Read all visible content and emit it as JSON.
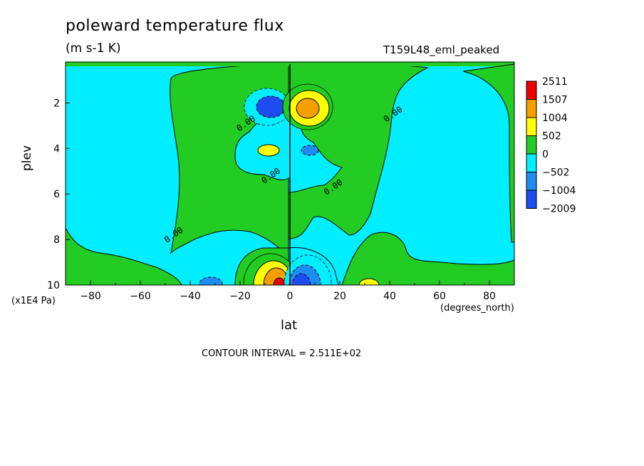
{
  "title": "poleward temperature flux",
  "units": "(m s-1 K)",
  "run_name": "T159L48_eml_peaked",
  "contour_interval": "CONTOUR INTERVAL = 2.511E+02",
  "colors": {
    "level_red": "#ee0000",
    "level_orange": "#f5a000",
    "level_yellow": "#ffff00",
    "level_green": "#22cc22",
    "level_cyan": "#00eeff",
    "level_midblue": "#1e8cf0",
    "level_blue": "#1e4cf0"
  },
  "chart_data": {
    "type": "heatmap",
    "title": "poleward temperature flux",
    "subtitle": "(m s-1 K)",
    "annotation": "T159L48_eml_peaked",
    "xlabel": "lat",
    "x_unit": "(degrees_north)",
    "ylabel": "plev",
    "y_unit": "(x1E4 Pa)",
    "xlim": [
      -90,
      90
    ],
    "ylim": [
      10,
      0.2
    ],
    "x_ticks": [
      -80,
      -60,
      -40,
      -20,
      0,
      20,
      40,
      60,
      80
    ],
    "x_tick_labels": [
      "−80",
      "−60",
      "−40",
      "−20",
      "0",
      "20",
      "40",
      "60",
      "80"
    ],
    "y_ticks": [
      2,
      4,
      6,
      8,
      10
    ],
    "y_tick_labels": [
      "2",
      "4",
      "6",
      "8",
      "10"
    ],
    "colorbar_levels": [
      2511,
      1507,
      1004,
      502,
      0,
      -502,
      -1004,
      -2009
    ],
    "colorbar_labels": [
      "2511",
      "1507",
      "1004",
      "502",
      "0",
      "−502",
      "−1004",
      "−2009"
    ],
    "contour_labels": [
      {
        "text": "0.00",
        "lat": -17,
        "plev": 3.0
      },
      {
        "text": "0.00",
        "lat": -7,
        "plev": 5.3
      },
      {
        "text": "0.00",
        "lat": 18,
        "plev": 5.8
      },
      {
        "text": "0.00",
        "lat": 42,
        "plev": 2.6
      },
      {
        "text": "0.00",
        "lat": -46,
        "plev": 7.9
      }
    ],
    "features": [
      {
        "label": "upper negative core",
        "lat": -8,
        "plev": 2.1,
        "value": -1004
      },
      {
        "label": "upper positive core",
        "lat": 7,
        "plev": 2.1,
        "value": 1507
      },
      {
        "label": "mid positive cell",
        "lat": -8,
        "plev": 4.0,
        "value": 502
      },
      {
        "label": "mid negative cell",
        "lat": 9,
        "plev": 4.0,
        "value": -502
      },
      {
        "label": "lower positive core",
        "lat": -5,
        "plev": 9.8,
        "value": 2511
      },
      {
        "label": "lower negative core",
        "lat": 6,
        "plev": 9.8,
        "value": -2009
      },
      {
        "label": "lower negative cell",
        "lat": -33,
        "plev": 9.9,
        "value": -502
      },
      {
        "label": "lower positive cell",
        "lat": 31,
        "plev": 9.9,
        "value": 502
      }
    ],
    "grid": false,
    "legend": "right"
  }
}
